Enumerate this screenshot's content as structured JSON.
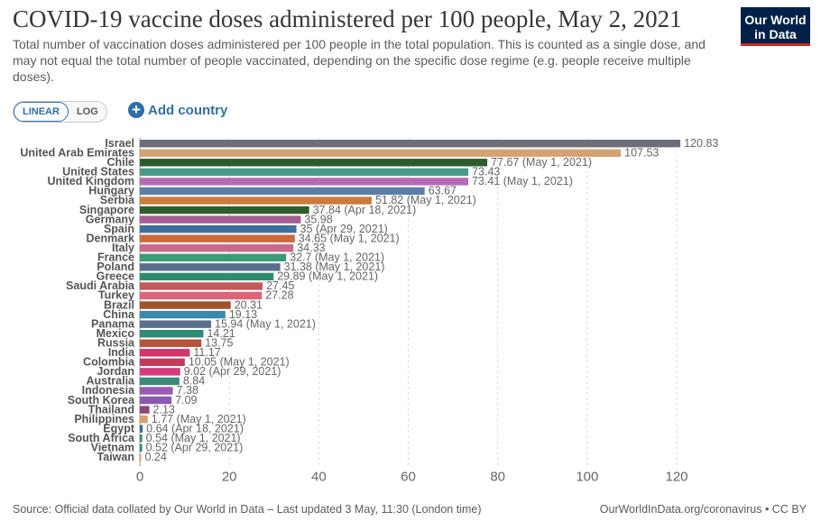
{
  "header": {
    "title": "COVID-19 vaccine doses administered per 100 people, May 2, 2021",
    "subtitle": "Total number of vaccination doses administered per 100 people in the total population. This is counted as a single dose, and may not equal the total number of people vaccinated, depending on the specific dose regime (e.g. people receive multiple doses)."
  },
  "logo": {
    "line1": "Our World",
    "line2": "in Data"
  },
  "controls": {
    "linear_label": "LINEAR",
    "log_label": "LOG",
    "add_country_label": "Add country",
    "add_icon": "plus-circle-icon"
  },
  "footer": {
    "source": "Source: Official data collated by Our World in Data – Last updated 3 May, 11:30 (London time)",
    "link": "OurWorldInData.org/coronavirus • CC BY"
  },
  "chart_data": {
    "type": "bar",
    "orientation": "horizontal",
    "xlim": [
      0,
      120
    ],
    "xticks": [
      "0",
      "20",
      "40",
      "60",
      "80",
      "100",
      "120"
    ],
    "grid": "vertical-dashed",
    "rows": [
      {
        "country": "Israel",
        "value": 120.83,
        "label": "120.83",
        "color": "#6d6e7a"
      },
      {
        "country": "United Arab Emirates",
        "value": 107.53,
        "label": "107.53",
        "color": "#d4a373"
      },
      {
        "country": "Chile",
        "value": 77.67,
        "label": "77.67 (May 1, 2021)",
        "color": "#2e5b2e"
      },
      {
        "country": "United States",
        "value": 73.43,
        "label": "73.43",
        "color": "#4a9b88"
      },
      {
        "country": "United Kingdom",
        "value": 73.41,
        "label": "73.41 (May 1, 2021)",
        "color": "#b86ab8"
      },
      {
        "country": "Hungary",
        "value": 63.67,
        "label": "63.67",
        "color": "#5b7fa6"
      },
      {
        "country": "Serbia",
        "value": 51.82,
        "label": "51.82 (May 1, 2021)",
        "color": "#cc7a3d"
      },
      {
        "country": "Singapore",
        "value": 37.84,
        "label": "37.84 (Apr 18, 2021)",
        "color": "#2f5d2f"
      },
      {
        "country": "Germany",
        "value": 35.98,
        "label": "35.98",
        "color": "#a55c8f"
      },
      {
        "country": "Spain",
        "value": 35,
        "label": "35 (Apr 29, 2021)",
        "color": "#3f6f9f"
      },
      {
        "country": "Denmark",
        "value": 34.65,
        "label": "34.65 (May 1, 2021)",
        "color": "#cc6a3a"
      },
      {
        "country": "Italy",
        "value": 34.33,
        "label": "34.33",
        "color": "#c96a8a"
      },
      {
        "country": "France",
        "value": 32.7,
        "label": "32.7 (May 1, 2021)",
        "color": "#3a9b78"
      },
      {
        "country": "Poland",
        "value": 31.38,
        "label": "31.38 (May 1, 2021)",
        "color": "#5a6e8c"
      },
      {
        "country": "Greece",
        "value": 29.89,
        "label": "29.89 (May 1, 2021)",
        "color": "#2e8b6e"
      },
      {
        "country": "Saudi Arabia",
        "value": 27.45,
        "label": "27.45",
        "color": "#c25a5a"
      },
      {
        "country": "Turkey",
        "value": 27.28,
        "label": "27.28",
        "color": "#d9667a"
      },
      {
        "country": "Brazil",
        "value": 20.31,
        "label": "20.31",
        "color": "#a0522d"
      },
      {
        "country": "China",
        "value": 19.13,
        "label": "19.13",
        "color": "#3a8aaa"
      },
      {
        "country": "Panama",
        "value": 15.94,
        "label": "15.94 (May 1, 2021)",
        "color": "#5a6f8c"
      },
      {
        "country": "Mexico",
        "value": 14.21,
        "label": "14.21",
        "color": "#2e8b78"
      },
      {
        "country": "Russia",
        "value": 13.75,
        "label": "13.75",
        "color": "#b5533a"
      },
      {
        "country": "India",
        "value": 11.17,
        "label": "11.17",
        "color": "#d6336c"
      },
      {
        "country": "Colombia",
        "value": 10.05,
        "label": "10.05 (May 1, 2021)",
        "color": "#c23b5a"
      },
      {
        "country": "Jordan",
        "value": 9.02,
        "label": "9.02 (Apr 29, 2021)",
        "color": "#d63a7a"
      },
      {
        "country": "Australia",
        "value": 8.84,
        "label": "8.84",
        "color": "#3a8a7a"
      },
      {
        "country": "Indonesia",
        "value": 7.38,
        "label": "7.38",
        "color": "#9a5ab5"
      },
      {
        "country": "South Korea",
        "value": 7.09,
        "label": "7.09",
        "color": "#8a5ab0"
      },
      {
        "country": "Thailand",
        "value": 2.13,
        "label": "2.13",
        "color": "#8a4a7a"
      },
      {
        "country": "Philippines",
        "value": 1.77,
        "label": "1.77 (May 1, 2021)",
        "color": "#d4a373"
      },
      {
        "country": "Egypt",
        "value": 0.64,
        "label": "0.64 (Apr 18, 2021)",
        "color": "#3a6aa0"
      },
      {
        "country": "South Africa",
        "value": 0.54,
        "label": "0.54 (May 1, 2021)",
        "color": "#4a8a5a"
      },
      {
        "country": "Vietnam",
        "value": 0.52,
        "label": "0.52 (Apr 29, 2021)",
        "color": "#2e8b6e"
      },
      {
        "country": "Taiwan",
        "value": 0.24,
        "label": "0.24",
        "color": "#d4a373"
      }
    ]
  }
}
